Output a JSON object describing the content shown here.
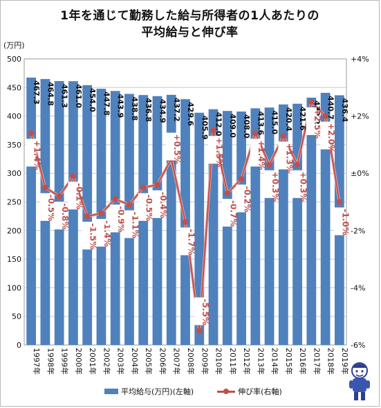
{
  "title": {
    "line1": "1年を通じて勤務した給与所得者の1人あたりの",
    "line2": "平均給与と伸び率"
  },
  "chart_data": {
    "type": "bar",
    "categories": [
      "1997年",
      "1998年",
      "1999年",
      "2000年",
      "2001年",
      "2002年",
      "2003年",
      "2004年",
      "2005年",
      "2006年",
      "2007年",
      "2008年",
      "2009年",
      "2010年",
      "2011年",
      "2012年",
      "2013年",
      "2014年",
      "2015年",
      "2016年",
      "2017年",
      "2018年",
      "2019年"
    ],
    "series": [
      {
        "name": "平均給与(万円)(左軸)",
        "kind": "bar",
        "axis": "left",
        "values": [
          467.3,
          464.8,
          461.3,
          461.0,
          454.0,
          447.8,
          443.9,
          438.8,
          436.8,
          434.9,
          437.2,
          429.6,
          405.9,
          412.0,
          409.0,
          408.0,
          413.6,
          415.0,
          420.4,
          421.6,
          432.2,
          440.7,
          436.4
        ],
        "labels": [
          "467.3",
          "464.8",
          "461.3",
          "461.0",
          "454.0",
          "447.8",
          "443.9",
          "438.8",
          "436.8",
          "434.9",
          "437.2",
          "429.6",
          "405.9",
          "412.0",
          "409.0",
          "408.0",
          "413.6",
          "415.0",
          "420.4",
          "421.6",
          "432.2",
          "440.7",
          "436.4"
        ]
      },
      {
        "name": "伸び率(右軸)",
        "kind": "line",
        "axis": "right",
        "values": [
          1.4,
          -0.5,
          -0.8,
          -0.1,
          -1.5,
          -1.4,
          -0.9,
          -1.1,
          -0.5,
          -0.4,
          0.5,
          -1.7,
          -5.5,
          1.5,
          -0.7,
          -0.2,
          1.4,
          0.3,
          1.3,
          0.3,
          2.5,
          2.0,
          -1.0
        ],
        "labels": [
          "+1.4%",
          "-0.5%",
          "-0.8%",
          "-0.1%",
          "-1.5%",
          "-1.4%",
          "-0.9%",
          "-1.1%",
          "-0.5%",
          "-0.4%",
          "",
          "-1.7%",
          "",
          "+1.5%",
          "-0.7%",
          "-0.2%",
          "+1.4%",
          "+0.3%",
          "+1.3%",
          "+0.3%",
          "+2.5%",
          "+2.0%",
          "-1.0%"
        ],
        "labels_low": [
          "",
          "",
          "",
          "",
          "",
          "",
          "",
          "",
          "",
          "",
          "+0.5%",
          "",
          "-5.5%",
          "",
          "",
          "",
          "",
          "",
          "",
          "",
          "",
          "",
          ""
        ]
      }
    ],
    "y_left": {
      "unit_label": "(万円)",
      "range": [
        0,
        500
      ],
      "ticks": [
        0,
        50,
        100,
        150,
        200,
        250,
        300,
        350,
        400,
        450,
        500
      ],
      "tick_labels": [
        "0",
        "50",
        "100",
        "150",
        "200",
        "250",
        "300",
        "350",
        "400",
        "450",
        "500"
      ]
    },
    "y_right": {
      "range": [
        -6,
        4
      ],
      "ticks": [
        -6,
        -4,
        -2,
        0,
        2,
        4
      ],
      "tick_labels": [
        "-6%",
        "-4%",
        "-2%",
        "±0%",
        "+2%",
        "+4%"
      ]
    },
    "grid": true,
    "legend_position": "bottom",
    "colors": {
      "bar": "#4f81bd",
      "line": "#c0504d",
      "line_light": "#e6a5a3",
      "grid": "#c8c8c8"
    }
  }
}
